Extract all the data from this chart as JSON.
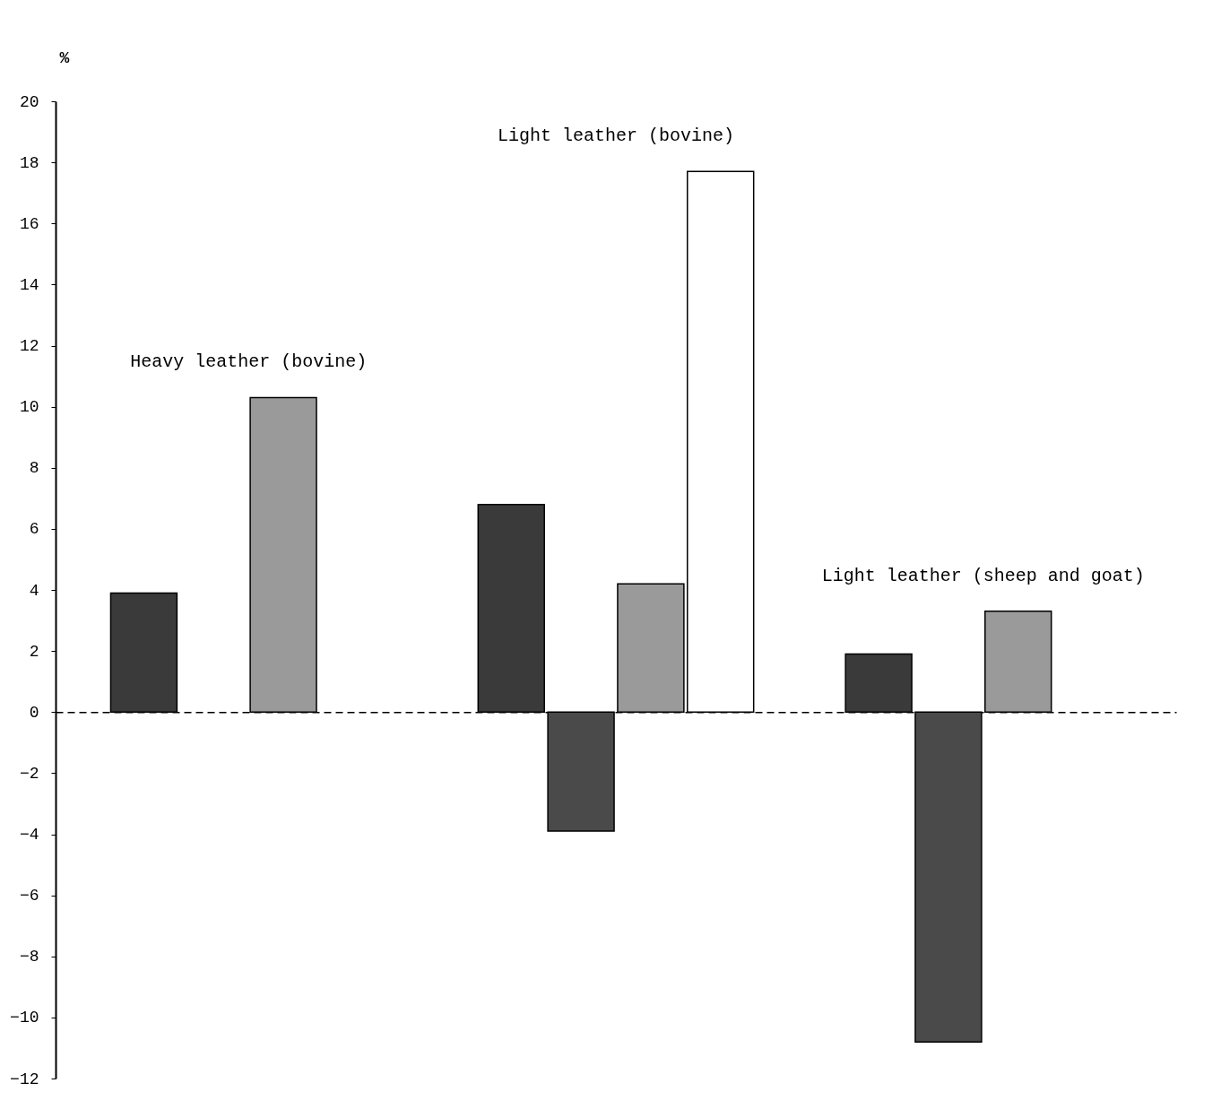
{
  "chart_data": {
    "type": "bar",
    "ylabel": "%",
    "categories": [
      null,
      null,
      null
    ],
    "series": [
      {
        "color": "#3a3a3a",
        "values": [
          3.9,
          6.8,
          1.9
        ]
      },
      {
        "color": "#4a4a4a",
        "values": [
          null,
          -3.9,
          -10.8
        ]
      },
      {
        "color": "#9a9a9a",
        "values": [
          10.3,
          4.2,
          3.3
        ]
      },
      {
        "color": "#ffffff",
        "values": [
          null,
          17.7,
          null
        ]
      }
    ],
    "ylim": [
      -12,
      20
    ],
    "yticks": [
      -12,
      -10,
      -8,
      -6,
      -4,
      -2,
      0,
      2,
      4,
      6,
      8,
      10,
      12,
      14,
      16,
      18,
      20
    ],
    "annotations": [
      "Heavy leather (bovine)",
      "Light leather (bovine)",
      "Light leather (sheep and goat)"
    ],
    "tick_labels": "y"
  }
}
